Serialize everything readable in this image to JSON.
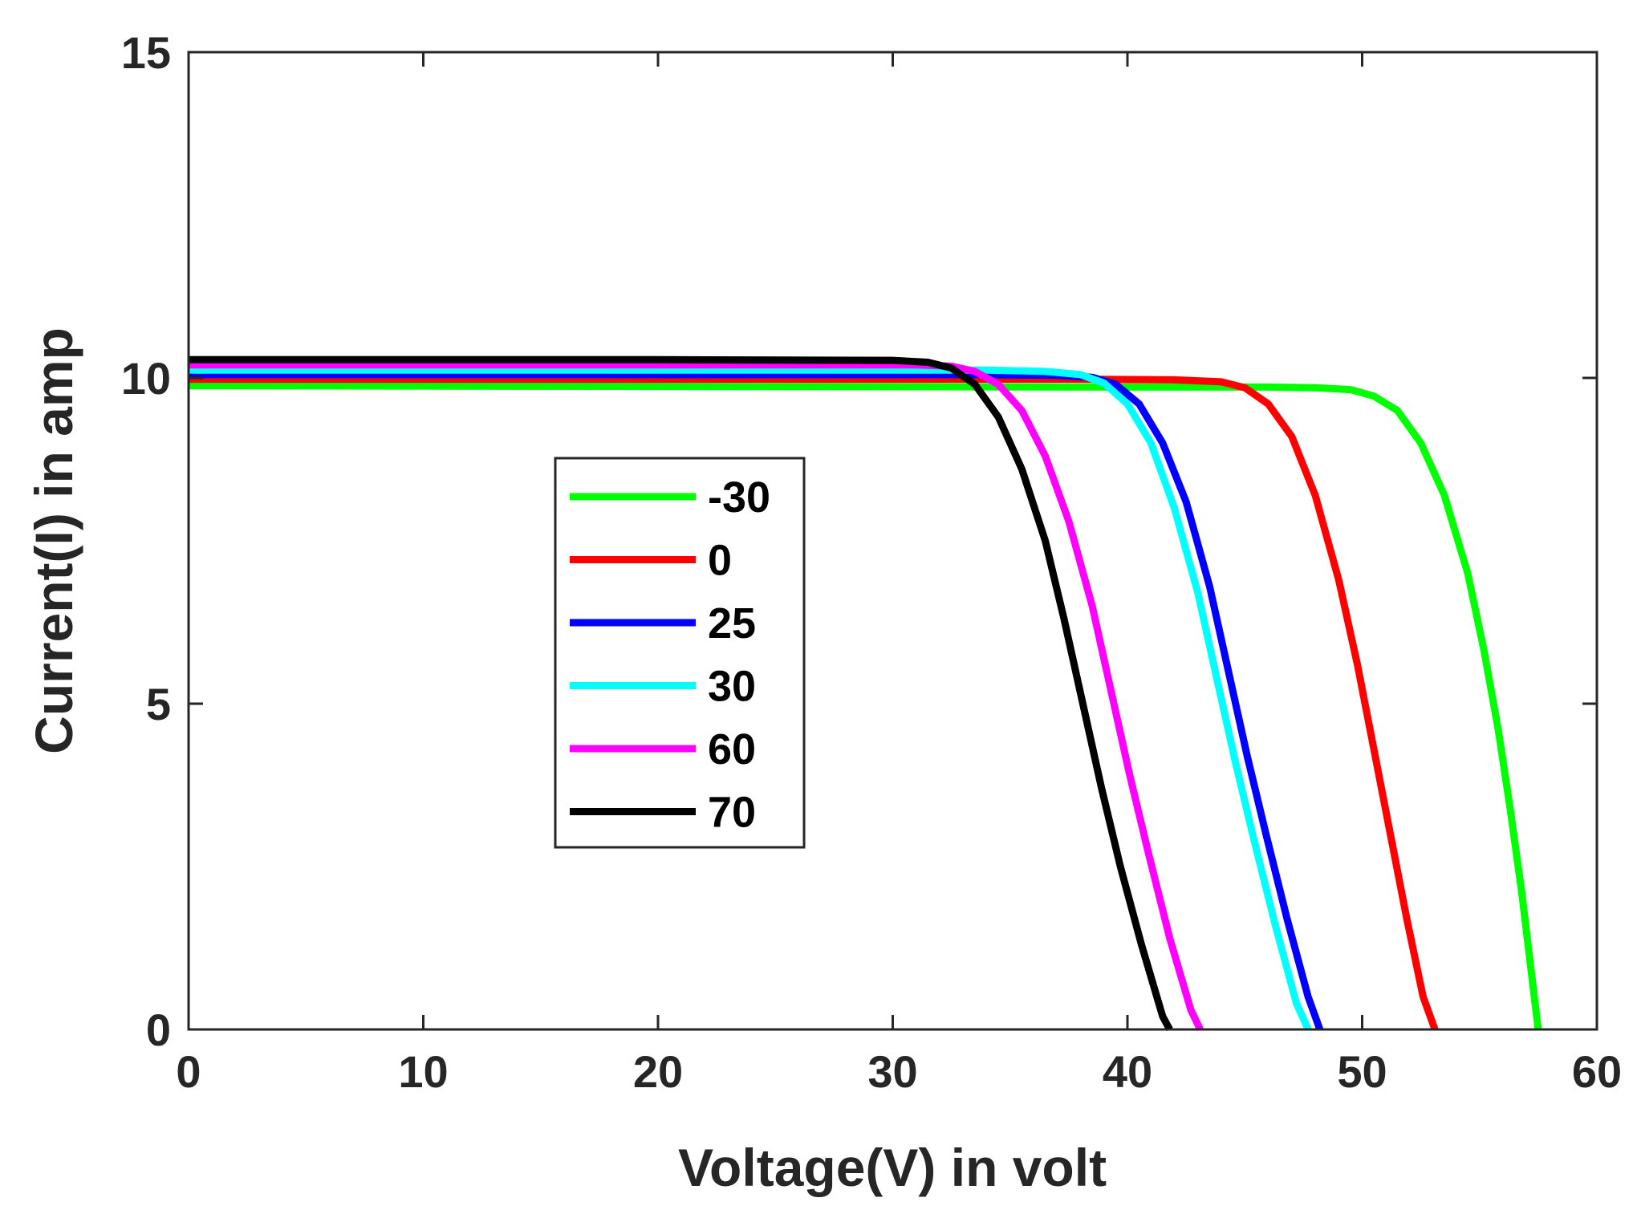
{
  "chart_data": {
    "type": "line",
    "title": "",
    "xlabel": "Voltage(V) in volt",
    "ylabel": "Current(I) in amp",
    "xlim": [
      0,
      60
    ],
    "ylim": [
      0,
      15
    ],
    "xticks": [
      0,
      10,
      20,
      30,
      40,
      50,
      60
    ],
    "yticks": [
      0,
      5,
      10,
      15
    ],
    "xtick_labels": [
      "0",
      "10",
      "20",
      "30",
      "40",
      "50",
      "60"
    ],
    "ytick_labels": [
      "0",
      "5",
      "10",
      "15"
    ],
    "grid": false,
    "legend_position": "center",
    "series": [
      {
        "name": "-30",
        "color": "#00ff00",
        "points": [
          [
            0,
            9.88
          ],
          [
            20,
            9.87
          ],
          [
            40,
            9.86
          ],
          [
            46,
            9.86
          ],
          [
            48,
            9.85
          ],
          [
            49.5,
            9.82
          ],
          [
            50.5,
            9.72
          ],
          [
            51.5,
            9.5
          ],
          [
            52.5,
            9.0
          ],
          [
            53.5,
            8.2
          ],
          [
            54.5,
            7.0
          ],
          [
            55.2,
            5.8
          ],
          [
            55.8,
            4.6
          ],
          [
            56.3,
            3.4
          ],
          [
            56.8,
            2.1
          ],
          [
            57.2,
            0.9
          ],
          [
            57.5,
            0
          ]
        ]
      },
      {
        "name": "0",
        "color": "#ff0000",
        "points": [
          [
            0,
            9.98
          ],
          [
            20,
            9.98
          ],
          [
            38,
            9.98
          ],
          [
            42,
            9.97
          ],
          [
            44,
            9.94
          ],
          [
            45,
            9.85
          ],
          [
            46,
            9.6
          ],
          [
            47,
            9.1
          ],
          [
            48,
            8.2
          ],
          [
            49,
            6.9
          ],
          [
            49.8,
            5.6
          ],
          [
            50.5,
            4.3
          ],
          [
            51.2,
            3.0
          ],
          [
            51.9,
            1.7
          ],
          [
            52.6,
            0.5
          ],
          [
            53.1,
            0
          ]
        ]
      },
      {
        "name": "25",
        "color": "#0000ff",
        "points": [
          [
            0,
            10.05
          ],
          [
            20,
            10.05
          ],
          [
            34,
            10.05
          ],
          [
            37,
            10.04
          ],
          [
            38.5,
            10.01
          ],
          [
            39.5,
            9.9
          ],
          [
            40.5,
            9.6
          ],
          [
            41.5,
            9.0
          ],
          [
            42.5,
            8.1
          ],
          [
            43.5,
            6.8
          ],
          [
            44.3,
            5.5
          ],
          [
            45.1,
            4.2
          ],
          [
            45.9,
            3.0
          ],
          [
            46.8,
            1.7
          ],
          [
            47.7,
            0.5
          ],
          [
            48.2,
            0
          ]
        ]
      },
      {
        "name": "30",
        "color": "#00ffff",
        "points": [
          [
            0,
            10.12
          ],
          [
            20,
            10.12
          ],
          [
            34,
            10.12
          ],
          [
            36.5,
            10.1
          ],
          [
            38,
            10.05
          ],
          [
            39,
            9.92
          ],
          [
            40,
            9.6
          ],
          [
            41,
            9.0
          ],
          [
            42,
            8.0
          ],
          [
            43,
            6.7
          ],
          [
            43.8,
            5.4
          ],
          [
            44.6,
            4.1
          ],
          [
            45.4,
            2.9
          ],
          [
            46.3,
            1.6
          ],
          [
            47.2,
            0.4
          ],
          [
            47.7,
            0
          ]
        ]
      },
      {
        "name": "60",
        "color": "#ff00ff",
        "points": [
          [
            0,
            10.2
          ],
          [
            20,
            10.2
          ],
          [
            31,
            10.2
          ],
          [
            32.5,
            10.18
          ],
          [
            33.5,
            10.1
          ],
          [
            34.5,
            9.9
          ],
          [
            35.5,
            9.5
          ],
          [
            36.5,
            8.8
          ],
          [
            37.5,
            7.8
          ],
          [
            38.5,
            6.5
          ],
          [
            39.3,
            5.2
          ],
          [
            40.1,
            3.9
          ],
          [
            40.9,
            2.7
          ],
          [
            41.8,
            1.4
          ],
          [
            42.7,
            0.3
          ],
          [
            43.1,
            0
          ]
        ]
      },
      {
        "name": "70",
        "color": "#000000",
        "points": [
          [
            0,
            10.28
          ],
          [
            20,
            10.28
          ],
          [
            30,
            10.27
          ],
          [
            31.5,
            10.24
          ],
          [
            32.5,
            10.15
          ],
          [
            33.5,
            9.9
          ],
          [
            34.5,
            9.4
          ],
          [
            35.5,
            8.6
          ],
          [
            36.5,
            7.5
          ],
          [
            37.3,
            6.3
          ],
          [
            38.1,
            5.0
          ],
          [
            38.9,
            3.7
          ],
          [
            39.7,
            2.5
          ],
          [
            40.6,
            1.3
          ],
          [
            41.5,
            0.2
          ],
          [
            41.8,
            0
          ]
        ]
      }
    ]
  }
}
